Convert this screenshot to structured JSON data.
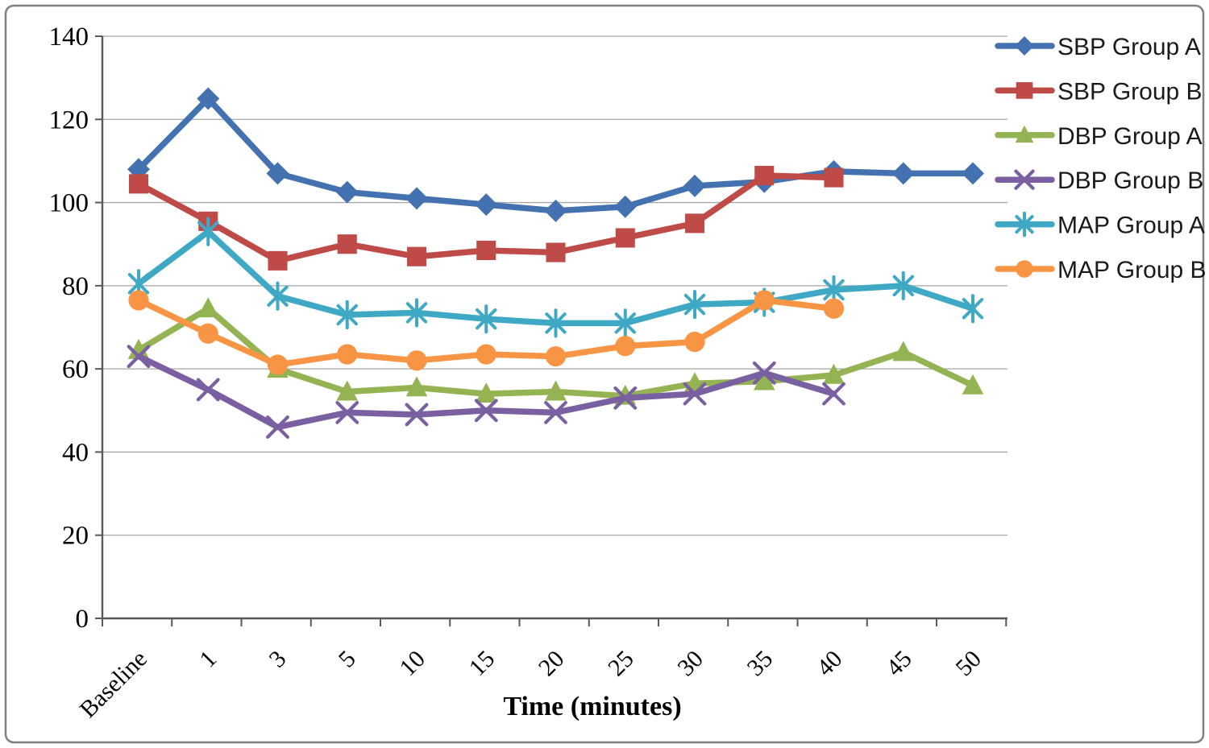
{
  "figure": {
    "background": "#ffffff",
    "border_color": "#808080"
  },
  "chart_data": {
    "type": "line",
    "title": "",
    "xlabel": "Time (minutes)",
    "ylabel": "",
    "ylim": [
      0,
      140
    ],
    "ytick_interval": 20,
    "ytick_labels": [
      "0",
      "20",
      "40",
      "60",
      "80",
      "100",
      "120",
      "140"
    ],
    "grid": "horizontal",
    "gridline_color": "#a6a6a6",
    "axis_color": "#595959",
    "legend_position": "top-right",
    "categories": [
      "Baseline",
      "1",
      "3",
      "5",
      "10",
      "15",
      "20",
      "25",
      "30",
      "35",
      "40",
      "45",
      "50"
    ],
    "series": [
      {
        "name": "SBP Group A",
        "color": "#4472B0",
        "marker": "diamond",
        "values": [
          108,
          125,
          107,
          102.5,
          101,
          99.5,
          98,
          99,
          104,
          105,
          107.5,
          107,
          107
        ]
      },
      {
        "name": "SBP Group B",
        "color": "#BE4B48",
        "marker": "square",
        "values": [
          104.5,
          95.5,
          86,
          90,
          87,
          88.5,
          88,
          91.5,
          95,
          106.5,
          106,
          null,
          null
        ]
      },
      {
        "name": "DBP Group A",
        "color": "#94B353",
        "marker": "triangle",
        "values": [
          64.5,
          74.5,
          60,
          54.5,
          55.5,
          54,
          54.5,
          53.5,
          56.5,
          57,
          58.5,
          64,
          56
        ]
      },
      {
        "name": "DBP Group B",
        "color": "#7A60A0",
        "marker": "x",
        "values": [
          63,
          55,
          46,
          49.5,
          49,
          50,
          49.5,
          53,
          54,
          59,
          54,
          null,
          null
        ]
      },
      {
        "name": "MAP Group A",
        "color": "#3FA9C5",
        "marker": "asterisk",
        "values": [
          80.5,
          93,
          77.5,
          73,
          73.5,
          72,
          71,
          71,
          75.5,
          76,
          79,
          80,
          74.5
        ]
      },
      {
        "name": "MAP Group B",
        "color": "#F79545",
        "marker": "circle",
        "values": [
          76.5,
          68.5,
          61,
          63.5,
          62,
          63.5,
          63,
          65.5,
          66.5,
          76.5,
          74.5,
          null,
          null
        ]
      }
    ]
  }
}
